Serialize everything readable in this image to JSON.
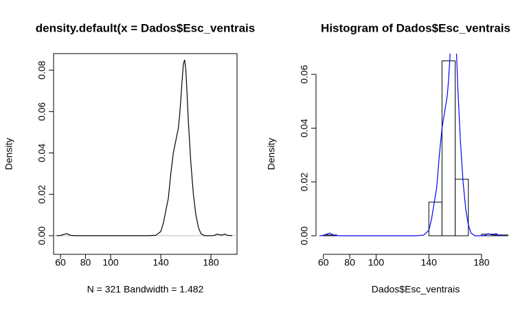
{
  "chart_data": [
    {
      "type": "line",
      "title": "density.default(x = Dados$Esc_ventrais",
      "xlabel": "N = 321   Bandwidth = 1.482",
      "ylabel": "Density",
      "x": [
        57,
        60,
        62,
        64,
        65,
        66,
        68,
        72,
        100,
        130,
        136,
        140,
        142,
        144,
        146,
        148,
        150,
        152,
        154,
        155,
        156,
        157,
        158,
        159,
        160,
        161,
        162,
        164,
        166,
        168,
        170,
        172,
        175,
        180,
        183,
        185,
        187,
        189,
        191,
        193,
        197
      ],
      "values": [
        0,
        0.0001,
        0.0005,
        0.0009,
        0.001,
        0.0007,
        0.0002,
        0,
        0,
        0,
        0.0002,
        0.002,
        0.006,
        0.012,
        0.018,
        0.03,
        0.04,
        0.046,
        0.052,
        0.058,
        0.066,
        0.075,
        0.083,
        0.085,
        0.08,
        0.068,
        0.055,
        0.035,
        0.02,
        0.01,
        0.004,
        0.001,
        0,
        0,
        0.0002,
        0.0008,
        0.0004,
        0.0003,
        0.0008,
        0.0002,
        0
      ],
      "color": "#000000",
      "zero_line_color": "#bebebe",
      "box": true,
      "xlim": [
        54.5,
        200.8
      ],
      "ylim": [
        -0.009,
        0.088
      ],
      "xticks": [
        60,
        80,
        100,
        140,
        180
      ],
      "yticks": [
        {
          "value": 0,
          "label": "0.00"
        },
        0.02,
        0.04,
        0.06,
        0.08
      ]
    },
    {
      "type": "histogram",
      "title": "Histogram of Dados$Esc_ventrais",
      "xlabel": "Dados$Esc_ventrais",
      "ylabel": "Density",
      "bins": [
        60,
        70,
        80,
        90,
        100,
        110,
        120,
        130,
        140,
        150,
        160,
        170,
        180,
        190,
        200
      ],
      "values": [
        0.0003,
        0,
        0,
        0,
        0,
        0,
        0,
        0,
        0.0125,
        0.065,
        0.021,
        0,
        0.0006,
        0.0003
      ],
      "color": "#ffffff",
      "border_color": "#000000",
      "box": false,
      "density_x": [
        57,
        60,
        62,
        64,
        65,
        66,
        68,
        72,
        100,
        130,
        136,
        140,
        142,
        144,
        146,
        148,
        150,
        152,
        154,
        155,
        156,
        157,
        158,
        159,
        160,
        161,
        162,
        164,
        166,
        168,
        170,
        172,
        175,
        180,
        183,
        185,
        187,
        189,
        191,
        193,
        197
      ],
      "density_values": [
        0,
        0.0001,
        0.0005,
        0.0009,
        0.001,
        0.0007,
        0.0002,
        0,
        0,
        0,
        0.0002,
        0.002,
        0.006,
        0.012,
        0.018,
        0.03,
        0.04,
        0.046,
        0.052,
        0.058,
        0.066,
        0.075,
        0.083,
        0.085,
        0.08,
        0.068,
        0.055,
        0.035,
        0.02,
        0.01,
        0.004,
        0.001,
        0,
        0,
        0.0002,
        0.0008,
        0.0004,
        0.0003,
        0.0008,
        0.0002,
        0
      ],
      "density_color": "#0000ff",
      "xlim": [
        54.4,
        205.6
      ],
      "ylim": [
        -0.0069,
        0.0677
      ],
      "xticks": [
        60,
        80,
        100,
        140,
        180
      ],
      "yticks": [
        {
          "value": 0,
          "label": "0.00"
        },
        0.02,
        0.04,
        0.06
      ]
    }
  ]
}
